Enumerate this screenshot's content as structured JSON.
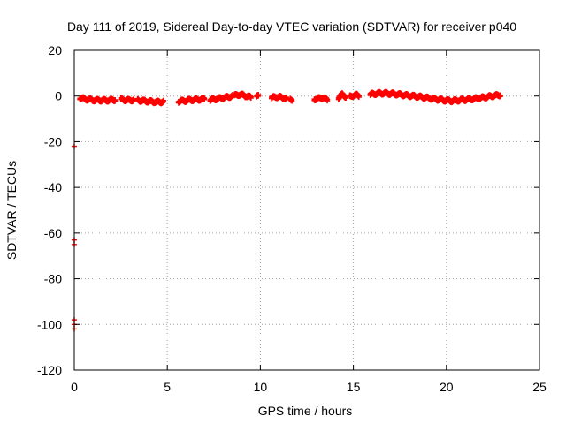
{
  "chart_data": {
    "type": "scatter",
    "title": "Day 111 of 2019, Sidereal Day-to-day VTEC variation (SDTVAR) for receiver p040",
    "xlabel": "GPS time / hours",
    "ylabel": "SDTVAR / TECUs",
    "xlim": [
      0,
      25
    ],
    "ylim": [
      -120,
      20
    ],
    "xticks": [
      0,
      5,
      10,
      15,
      20,
      25
    ],
    "yticks": [
      20,
      0,
      -20,
      -40,
      -60,
      -80,
      -100,
      -120
    ],
    "grid": true,
    "marker": "+",
    "series_color": "#ff0000",
    "outliers": [
      {
        "x": 0.0,
        "y": -22
      },
      {
        "x": 0.0,
        "y": -63
      },
      {
        "x": 0.0,
        "y": -65
      },
      {
        "x": 0.0,
        "y": -98
      },
      {
        "x": 0.0,
        "y": -100
      },
      {
        "x": 0.0,
        "y": -102
      }
    ],
    "segments": [
      {
        "x_start": 0.3,
        "x_end": 2.2,
        "y": [
          -0.5,
          -1.0,
          -1.3,
          -1.5,
          -1.5,
          -1.6,
          -1.5,
          -1.3
        ]
      },
      {
        "x_start": 2.5,
        "x_end": 3.2,
        "y": [
          -1.2,
          -1.4,
          -1.6,
          -1.3
        ]
      },
      {
        "x_start": 3.4,
        "x_end": 4.8,
        "y": [
          -1.5,
          -1.8,
          -2.0,
          -2.2,
          -2.3,
          -2.2
        ]
      },
      {
        "x_start": 5.6,
        "x_end": 7.0,
        "y": [
          -2.0,
          -1.8,
          -1.5,
          -1.3,
          -1.2,
          -1.0
        ]
      },
      {
        "x_start": 7.3,
        "x_end": 8.5,
        "y": [
          -1.5,
          -1.0,
          -0.6,
          -0.2,
          0.3
        ]
      },
      {
        "x_start": 8.6,
        "x_end": 9.5,
        "y": [
          0.5,
          1.0,
          0.4,
          -0.3
        ]
      },
      {
        "x_start": 9.8,
        "x_end": 9.9,
        "y": [
          0.2
        ]
      },
      {
        "x_start": 10.6,
        "x_end": 11.4,
        "y": [
          -0.5,
          0.0,
          -0.3,
          -0.8
        ]
      },
      {
        "x_start": 11.6,
        "x_end": 11.7,
        "y": [
          -1.2
        ]
      },
      {
        "x_start": 12.9,
        "x_end": 13.6,
        "y": [
          -1.0,
          -0.8,
          -0.3,
          -1.5
        ]
      },
      {
        "x_start": 14.2,
        "x_end": 14.6,
        "y": [
          -0.5,
          1.0,
          0.0
        ]
      },
      {
        "x_start": 14.8,
        "x_end": 15.3,
        "y": [
          0.0,
          0.5,
          0.8,
          0.4
        ]
      },
      {
        "x_start": 15.9,
        "x_end": 22.9,
        "y": [
          1.0,
          1.5,
          1.5,
          1.2,
          0.8,
          0.4,
          0.0,
          -0.5,
          -1.0,
          -1.5,
          -1.8,
          -1.5,
          -1.2,
          -0.8,
          -0.3,
          0.3,
          0.8
        ]
      }
    ]
  }
}
